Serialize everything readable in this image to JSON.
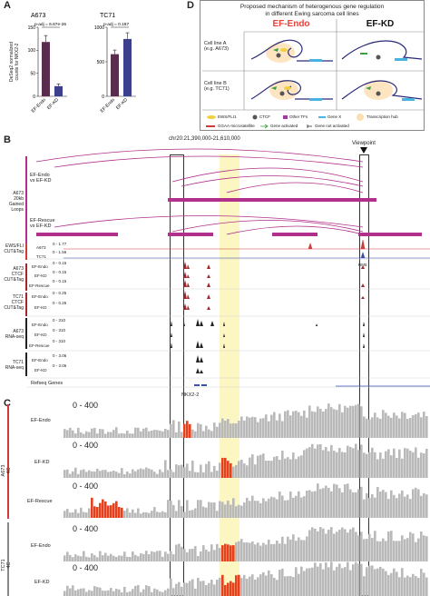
{
  "panel_a": {
    "letter": "A",
    "ylabel_line1": "DeSeq2 normalized",
    "ylabel_line2": "counts for NKX2-2",
    "chart_data": [
      {
        "type": "bar",
        "title": "A673",
        "annotation": "p-adj = 6.67e-26",
        "categories": [
          "EF-Endo",
          "EF-KD"
        ],
        "values": [
          118,
          22
        ],
        "errors": [
          14,
          5
        ],
        "colors": [
          "#5a2d4f",
          "#3b3f8c"
        ],
        "yticks": [
          0,
          50,
          100,
          150
        ],
        "ylim": [
          0,
          150
        ]
      },
      {
        "type": "bar",
        "title": "TC71",
        "annotation": "p-adj = 0.187",
        "categories": [
          "EF-Endo",
          "EF-KD"
        ],
        "values": [
          610,
          830
        ],
        "errors": [
          60,
          90
        ],
        "colors": [
          "#5a2d4f",
          "#3b3f8c"
        ],
        "yticks": [
          0,
          500,
          1000
        ],
        "ylim": [
          0,
          1000
        ]
      }
    ]
  },
  "panel_d": {
    "letter": "D",
    "title_line1": "Proposed mechanism of heterogenous gene regulation",
    "title_line2": "in different Ewing sarcoma cell lines",
    "col1": "EF-Endo",
    "col2": "EF-KD",
    "row1_line1": "Cell line A",
    "row1_line2": "(e.g. A673)",
    "row2_line1": "Cell line B",
    "row2_line2": "(e.g. TC71)",
    "legend": {
      "ewsfli1": "EWS/FLI1",
      "ctcf": "CTCF",
      "other_tfs": "Other TFs",
      "gene_x": "Gene X",
      "hub": "Transcription hub",
      "ggaa": "GGAA-microsatellite",
      "activated": "Gene activated",
      "not_activated": "Gene not activated"
    },
    "colors": {
      "endo": "#e8433a",
      "box_border": "#888888"
    }
  },
  "panel_b": {
    "letter": "B",
    "coords": "chr20:21,390,000-21,610,000",
    "viewpoint": "Viewpoint",
    "loops_group": {
      "line1": "A673",
      "line2": "20kb",
      "line3": "Gained",
      "line4": "Loops"
    },
    "loops_endo": {
      "line1": "EF-Endo",
      "line2": "vs EF-KD"
    },
    "loops_rescue": {
      "line1": "EF-Rescue",
      "line2": "vs EF-KD"
    },
    "ewsfli_group": {
      "line1": "EWS/FLI",
      "line2": "CUT&Tag"
    },
    "a673_ctcf": {
      "line1": "A673",
      "line2": "CTCF",
      "line3": "CUT&Tag"
    },
    "tc71_ctcf": {
      "line1": "TC71",
      "line2": "CTCF",
      "line3": "CUT&Tag"
    },
    "a673_rna": {
      "line1": "A673",
      "line2": "RNA-seq"
    },
    "tc71_rna": {
      "line1": "TC71",
      "line2": "RNA-seq"
    },
    "tracks": {
      "a673": "A673",
      "tc71": "TC71",
      "ef_endo": "EF-Endo",
      "ef_kd": "EF-KD",
      "ef_rescue": "EF-Rescue",
      "r_177": "0 - 1.77",
      "r_156": "0 - 1.56",
      "r_015": "0 - 0.15",
      "r_025": "0 - 0.25",
      "r_310": "0 - 310",
      "r_306": "0 - 3.06"
    },
    "rm5": "RM5",
    "refseq": "Refseq Genes",
    "gene": "NKX2-2",
    "colors": {
      "loop": "#b0308c",
      "ctcf": "#a0282a",
      "rna": "#222222",
      "ewsfli": "#d03a3a",
      "highlight": "#fbf6c2"
    }
  },
  "panel_c": {
    "letter": "C",
    "range": "0 - 400",
    "a673_group": {
      "line1": "A673",
      "line2": "4C"
    },
    "tc71_group": {
      "line1": "TC71",
      "line2": "4C"
    },
    "rows": [
      "EF-Endo",
      "EF-KD",
      "EF-Rescue",
      "EF-Endo",
      "EF-KD"
    ],
    "colors": {
      "bar": "#b9b9b9",
      "hit": "#e8401c"
    }
  }
}
